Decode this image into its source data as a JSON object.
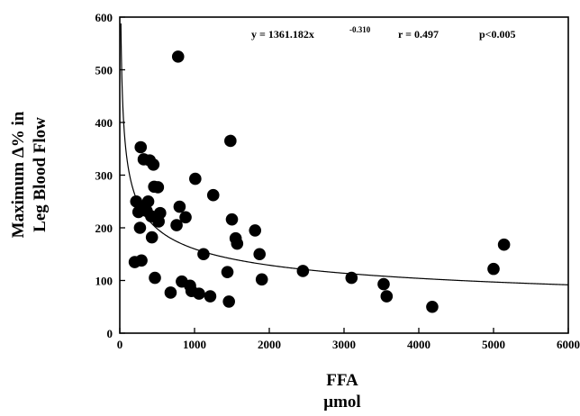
{
  "chart_data": {
    "type": "scatter",
    "xlabel_line1": "FFA",
    "xlabel_line2": "μmol",
    "ylabel_line1": "Maximum Δ% in",
    "ylabel_line2": "Leg Blood Flow",
    "xlim": [
      0,
      6000
    ],
    "ylim": [
      0,
      600
    ],
    "x_ticks": [
      "0",
      "1000",
      "2000",
      "3000",
      "4000",
      "5000",
      "6000"
    ],
    "y_ticks": [
      "0",
      "100",
      "200",
      "300",
      "400",
      "500",
      "600"
    ],
    "x_tick_values": [
      0,
      1000,
      2000,
      3000,
      4000,
      5000,
      6000
    ],
    "y_tick_values": [
      0,
      100,
      200,
      300,
      400,
      500,
      600
    ],
    "annotation": {
      "equation": "y = 1361.182x",
      "exponent": "-0.310",
      "r": "r = 0.497",
      "p": "p<0.005"
    },
    "fit": {
      "a": 1361.182,
      "b": -0.31
    },
    "points": [
      {
        "x": 200,
        "y": 135
      },
      {
        "x": 220,
        "y": 250
      },
      {
        "x": 250,
        "y": 230
      },
      {
        "x": 270,
        "y": 200
      },
      {
        "x": 280,
        "y": 353
      },
      {
        "x": 290,
        "y": 138
      },
      {
        "x": 320,
        "y": 330
      },
      {
        "x": 330,
        "y": 240
      },
      {
        "x": 360,
        "y": 232
      },
      {
        "x": 380,
        "y": 250
      },
      {
        "x": 400,
        "y": 328
      },
      {
        "x": 420,
        "y": 222
      },
      {
        "x": 430,
        "y": 182
      },
      {
        "x": 450,
        "y": 320
      },
      {
        "x": 460,
        "y": 278
      },
      {
        "x": 470,
        "y": 105
      },
      {
        "x": 490,
        "y": 220
      },
      {
        "x": 510,
        "y": 277
      },
      {
        "x": 520,
        "y": 212
      },
      {
        "x": 540,
        "y": 228
      },
      {
        "x": 680,
        "y": 77
      },
      {
        "x": 760,
        "y": 205
      },
      {
        "x": 780,
        "y": 525
      },
      {
        "x": 800,
        "y": 240
      },
      {
        "x": 830,
        "y": 98
      },
      {
        "x": 880,
        "y": 220
      },
      {
        "x": 940,
        "y": 90
      },
      {
        "x": 960,
        "y": 80
      },
      {
        "x": 1010,
        "y": 293
      },
      {
        "x": 1060,
        "y": 75
      },
      {
        "x": 1120,
        "y": 150
      },
      {
        "x": 1210,
        "y": 70
      },
      {
        "x": 1250,
        "y": 262
      },
      {
        "x": 1440,
        "y": 116
      },
      {
        "x": 1460,
        "y": 60
      },
      {
        "x": 1480,
        "y": 365
      },
      {
        "x": 1500,
        "y": 216
      },
      {
        "x": 1550,
        "y": 180
      },
      {
        "x": 1570,
        "y": 170
      },
      {
        "x": 1810,
        "y": 195
      },
      {
        "x": 1870,
        "y": 150
      },
      {
        "x": 1900,
        "y": 102
      },
      {
        "x": 2450,
        "y": 118
      },
      {
        "x": 3100,
        "y": 105
      },
      {
        "x": 3530,
        "y": 93
      },
      {
        "x": 3570,
        "y": 70
      },
      {
        "x": 4180,
        "y": 50
      },
      {
        "x": 5000,
        "y": 122
      },
      {
        "x": 5140,
        "y": 168
      }
    ]
  }
}
